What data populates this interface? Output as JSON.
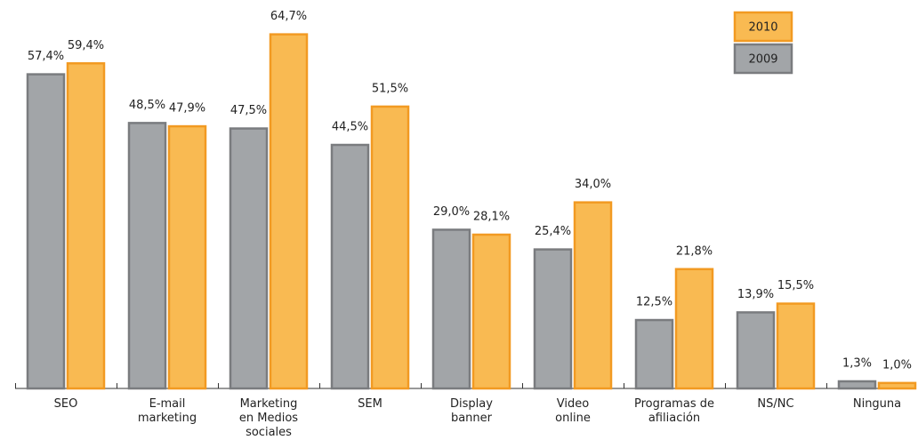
{
  "chart_data": {
    "type": "bar",
    "categories": [
      "SEO",
      "E-mail\nmarketing",
      "Marketing\nen Medios\nsociales",
      "SEM",
      "Display\nbanner",
      "Video\nonline",
      "Programas de\nafiliación",
      "NS/NC",
      "Ninguna"
    ],
    "series": [
      {
        "name": "2009",
        "color": "#a2a5a8",
        "stroke": "#7a7c7f",
        "values": [
          57.4,
          48.5,
          47.5,
          44.5,
          29.0,
          25.4,
          12.5,
          13.9,
          1.3
        ],
        "value_labels": [
          "57,4%",
          "48,5%",
          "47,5%",
          "44,5%",
          "29,0%",
          "25,4%",
          "12,5%",
          "13,9%",
          "1,3%"
        ]
      },
      {
        "name": "2010",
        "color": "#f9ba52",
        "stroke": "#f29a22",
        "values": [
          59.4,
          47.9,
          64.7,
          51.5,
          28.1,
          34.0,
          21.8,
          15.5,
          1.0
        ],
        "value_labels": [
          "59,4%",
          "47,9%",
          "64,7%",
          "51,5%",
          "28,1%",
          "34,0%",
          "21,8%",
          "15,5%",
          "1,0%"
        ]
      }
    ],
    "ylim": [
      0,
      70
    ],
    "legend": "top-right"
  }
}
